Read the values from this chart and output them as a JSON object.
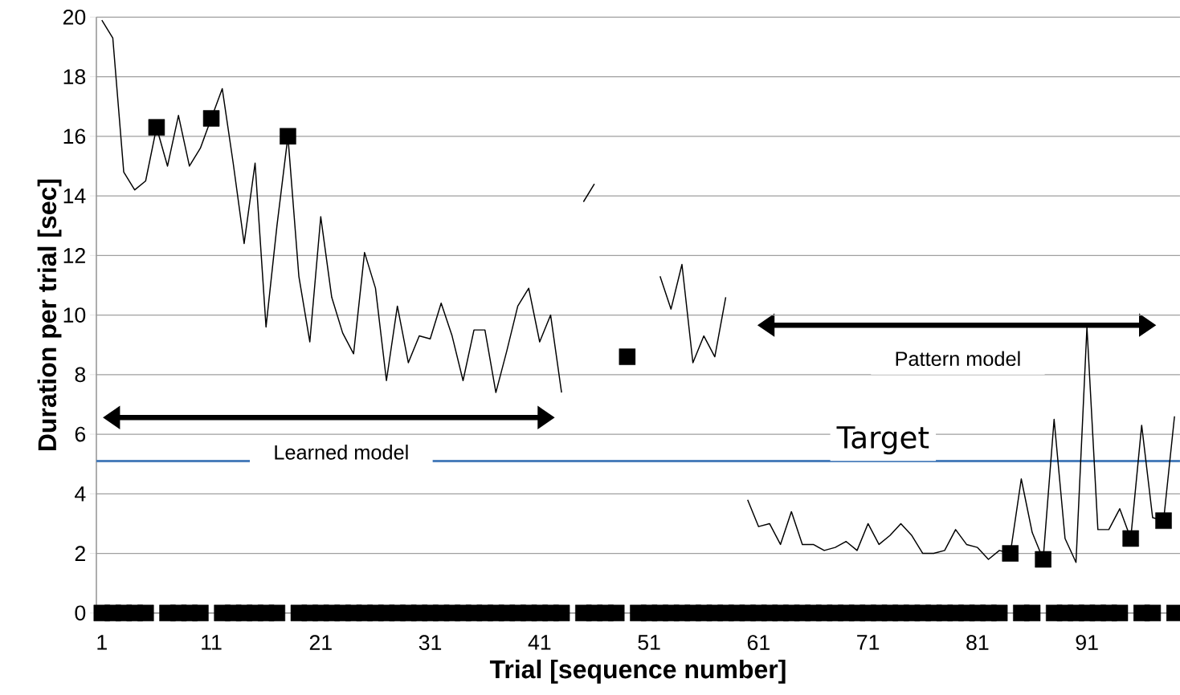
{
  "chart_data": {
    "type": "line",
    "xlabel": "Trial [sequence number]",
    "ylabel": "Duration per trial [sec]",
    "x": [
      1,
      2,
      3,
      4,
      5,
      6,
      7,
      8,
      9,
      10,
      11,
      12,
      13,
      14,
      15,
      16,
      17,
      18,
      19,
      20,
      21,
      22,
      23,
      24,
      25,
      26,
      27,
      28,
      29,
      30,
      31,
      32,
      33,
      34,
      35,
      36,
      37,
      38,
      39,
      40,
      41,
      42,
      43,
      44,
      45,
      46,
      47,
      48,
      49,
      50,
      51,
      52,
      53,
      54,
      55,
      56,
      57,
      58,
      59,
      60,
      61,
      62,
      63,
      64,
      65,
      66,
      67,
      68,
      69,
      70,
      71,
      72,
      73,
      74,
      75,
      76,
      77,
      78,
      79,
      80,
      81,
      82,
      83,
      84,
      85,
      86,
      87,
      88,
      89,
      90,
      91,
      92,
      93,
      94,
      95,
      96,
      97,
      98,
      99
    ],
    "xlim": [
      0.5,
      99.5
    ],
    "xticks": [
      1,
      11,
      21,
      31,
      41,
      51,
      61,
      71,
      81,
      91
    ],
    "ylim": [
      0,
      20
    ],
    "yticks": [
      0,
      2,
      4,
      6,
      8,
      10,
      12,
      14,
      16,
      18,
      20
    ],
    "grid": "y",
    "series": [
      {
        "type": "line",
        "color": "#000000",
        "marker": "none",
        "values": [
          19.9,
          19.3,
          14.8,
          14.2,
          14.5,
          16.3,
          15.0,
          16.7,
          15.0,
          15.6,
          16.6,
          17.6,
          15.1,
          12.4,
          15.1,
          9.6,
          13.0,
          16.0,
          11.3,
          9.1,
          13.3,
          10.6,
          9.4,
          8.7,
          12.1,
          10.9,
          7.8,
          10.3,
          8.4,
          9.3,
          9.2,
          10.4,
          9.3,
          7.8,
          9.5,
          9.5,
          7.4,
          8.8,
          10.3,
          10.9,
          9.1,
          10.0,
          7.4,
          null,
          13.8,
          14.4,
          null,
          null,
          null,
          null,
          null,
          11.3,
          10.2,
          11.7,
          8.4,
          9.3,
          8.6,
          10.6,
          null,
          3.8,
          2.9,
          3.0,
          2.3,
          3.4,
          2.3,
          2.3,
          2.1,
          2.2,
          2.4,
          2.1,
          3.0,
          2.3,
          2.6,
          3.0,
          2.6,
          2.0,
          2.0,
          2.1,
          2.8,
          2.3,
          2.2,
          1.8,
          2.1,
          2.0,
          4.5,
          2.7,
          1.8,
          6.5,
          2.5,
          1.7,
          9.6,
          2.8,
          2.8,
          3.5,
          2.5,
          6.3,
          3.2,
          3.1,
          6.6
        ]
      },
      {
        "type": "scatter",
        "color": "#000000",
        "marker": "square",
        "values": [
          0,
          0,
          0,
          0,
          0,
          16.3,
          0,
          0,
          0,
          0,
          16.6,
          0,
          0,
          0,
          0,
          0,
          0,
          16.0,
          0,
          0,
          0,
          0,
          0,
          0,
          0,
          0,
          0,
          0,
          0,
          0,
          0,
          0,
          0,
          0,
          0,
          0,
          0,
          0,
          0,
          0,
          0,
          0,
          0,
          null,
          0,
          0,
          0,
          0,
          8.6,
          0,
          0,
          0,
          0,
          0,
          0,
          0,
          0,
          0,
          0,
          0,
          0,
          0,
          0,
          0,
          0,
          0,
          0,
          0,
          0,
          0,
          0,
          0,
          0,
          0,
          0,
          0,
          0,
          0,
          0,
          0,
          0,
          0,
          0,
          2.0,
          0,
          0,
          1.8,
          0,
          0,
          0,
          0,
          0,
          0,
          0,
          2.5,
          0,
          0,
          3.1,
          0
        ]
      }
    ],
    "ref_lines": [
      {
        "axis": "y",
        "value": 5.1,
        "label": "Target",
        "color": "#4a7ebb"
      }
    ],
    "annotations": [
      "Learned model",
      "Pattern model"
    ]
  }
}
